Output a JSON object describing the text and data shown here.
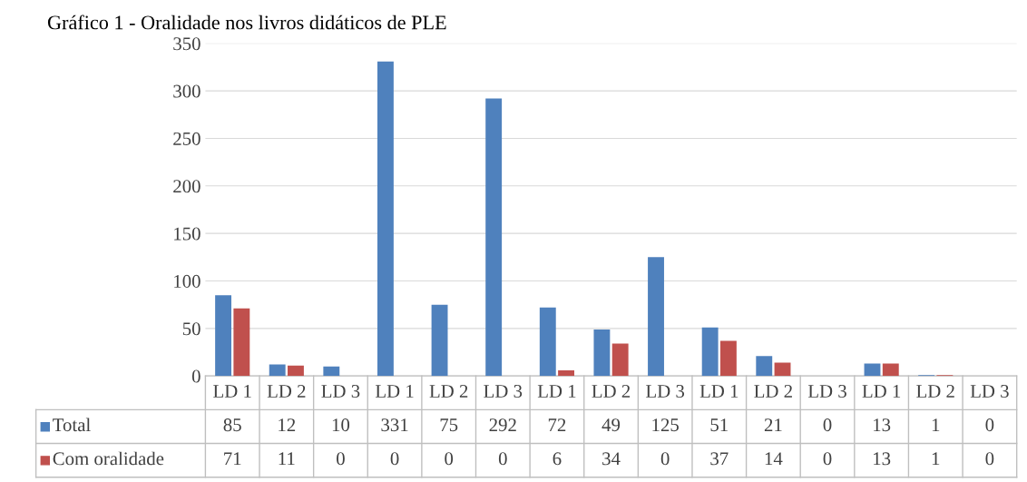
{
  "chart_data": {
    "type": "bar",
    "title": "Gráfico 1 - Oralidade nos livros didáticos de PLE",
    "categories": [
      "LD 1",
      "LD 2",
      "LD 3",
      "LD 1",
      "LD 2",
      "LD 3",
      "LD 1",
      "LD 2",
      "LD 3",
      "LD 1",
      "LD 2",
      "LD 3",
      "LD 1",
      "LD 2",
      "LD 3"
    ],
    "series": [
      {
        "name": "Total",
        "color": "#4f81bd",
        "values": [
          85,
          12,
          10,
          331,
          75,
          292,
          72,
          49,
          125,
          51,
          21,
          0,
          13,
          1,
          0
        ]
      },
      {
        "name": "Com oralidade",
        "color": "#c0504d",
        "values": [
          71,
          11,
          0,
          0,
          0,
          0,
          6,
          34,
          0,
          37,
          14,
          0,
          13,
          1,
          0
        ]
      }
    ],
    "ylim": [
      0,
      350
    ],
    "yticks": [
      0,
      50,
      100,
      150,
      200,
      250,
      300,
      350
    ],
    "grid": "y",
    "data_labels": true,
    "legend": "bottom"
  }
}
